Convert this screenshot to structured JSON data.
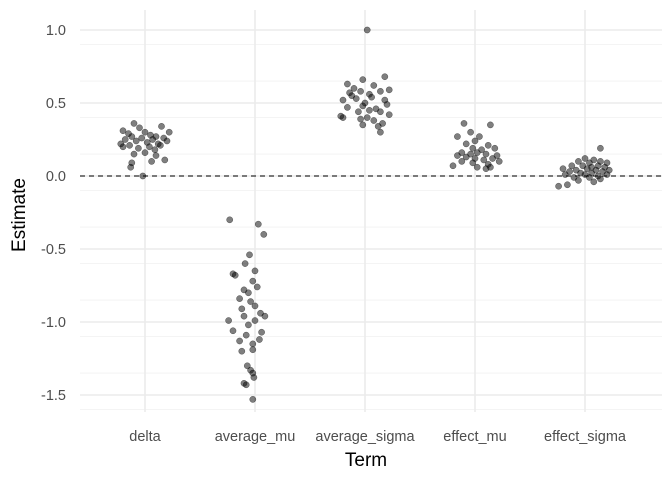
{
  "chart_data": {
    "type": "scatter",
    "title": "",
    "xlabel": "Term",
    "ylabel": "Estimate",
    "categories": [
      "delta",
      "average_mu",
      "average_sigma",
      "effect_mu",
      "effect_sigma"
    ],
    "ylim": [
      -1.6,
      1.06
    ],
    "y_ticks": [
      1.0,
      0.5,
      0.0,
      -0.5,
      -1.0,
      -1.5
    ],
    "y_tick_labels": [
      "1.0",
      "0.5",
      "0.0",
      "-0.5",
      "-1.0",
      "-1.5"
    ],
    "reference_line": {
      "y": 0,
      "style": "dashed"
    },
    "grid": true,
    "point_color": "#000000",
    "point_alpha": 0.5,
    "series": [
      {
        "category": "delta",
        "points": [
          {
            "x": -0.2,
            "y": 0.31
          },
          {
            "x": -0.15,
            "y": 0.29
          },
          {
            "x": -0.1,
            "y": 0.36
          },
          {
            "x": -0.05,
            "y": 0.33
          },
          {
            "x": 0.0,
            "y": 0.3
          },
          {
            "x": 0.05,
            "y": 0.28
          },
          {
            "x": 0.1,
            "y": 0.27
          },
          {
            "x": 0.15,
            "y": 0.34
          },
          {
            "x": 0.22,
            "y": 0.3
          },
          {
            "x": -0.22,
            "y": 0.22
          },
          {
            "x": -0.18,
            "y": 0.25
          },
          {
            "x": -0.12,
            "y": 0.27
          },
          {
            "x": -0.08,
            "y": 0.24
          },
          {
            "x": -0.03,
            "y": 0.26
          },
          {
            "x": 0.02,
            "y": 0.23
          },
          {
            "x": 0.07,
            "y": 0.25
          },
          {
            "x": 0.12,
            "y": 0.22
          },
          {
            "x": 0.17,
            "y": 0.26
          },
          {
            "x": 0.2,
            "y": 0.24
          },
          {
            "x": -0.2,
            "y": 0.2
          },
          {
            "x": -0.14,
            "y": 0.21
          },
          {
            "x": -0.06,
            "y": 0.19
          },
          {
            "x": 0.04,
            "y": 0.2
          },
          {
            "x": 0.09,
            "y": 0.18
          },
          {
            "x": 0.14,
            "y": 0.21
          },
          {
            "x": -0.1,
            "y": 0.15
          },
          {
            "x": 0.0,
            "y": 0.16
          },
          {
            "x": 0.1,
            "y": 0.14
          },
          {
            "x": 0.18,
            "y": 0.11
          },
          {
            "x": -0.12,
            "y": 0.09
          },
          {
            "x": -0.13,
            "y": 0.06
          },
          {
            "x": 0.06,
            "y": 0.1
          },
          {
            "x": -0.02,
            "y": 0.0
          }
        ]
      },
      {
        "category": "average_mu",
        "points": [
          {
            "x": -0.23,
            "y": -0.3
          },
          {
            "x": 0.03,
            "y": -0.33
          },
          {
            "x": 0.08,
            "y": -0.4
          },
          {
            "x": -0.05,
            "y": -0.54
          },
          {
            "x": -0.09,
            "y": -0.6
          },
          {
            "x": 0.0,
            "y": -0.65
          },
          {
            "x": -0.2,
            "y": -0.67
          },
          {
            "x": -0.18,
            "y": -0.68
          },
          {
            "x": -0.02,
            "y": -0.72
          },
          {
            "x": -0.1,
            "y": -0.78
          },
          {
            "x": -0.06,
            "y": -0.8
          },
          {
            "x": 0.02,
            "y": -0.76
          },
          {
            "x": -0.14,
            "y": -0.84
          },
          {
            "x": -0.04,
            "y": -0.86
          },
          {
            "x": 0.0,
            "y": -0.89
          },
          {
            "x": -0.12,
            "y": -0.91
          },
          {
            "x": -0.1,
            "y": -0.96
          },
          {
            "x": 0.05,
            "y": -0.94
          },
          {
            "x": 0.09,
            "y": -0.96
          },
          {
            "x": -0.24,
            "y": -0.99
          },
          {
            "x": -0.06,
            "y": -1.02
          },
          {
            "x": 0.0,
            "y": -0.99
          },
          {
            "x": -0.2,
            "y": -1.06
          },
          {
            "x": -0.08,
            "y": -1.09
          },
          {
            "x": 0.06,
            "y": -1.07
          },
          {
            "x": -0.14,
            "y": -1.13
          },
          {
            "x": -0.02,
            "y": -1.15
          },
          {
            "x": 0.04,
            "y": -1.12
          },
          {
            "x": -0.12,
            "y": -1.2
          },
          {
            "x": -0.02,
            "y": -1.19
          },
          {
            "x": -0.07,
            "y": -1.3
          },
          {
            "x": -0.04,
            "y": -1.33
          },
          {
            "x": -0.02,
            "y": -1.35
          },
          {
            "x": -0.01,
            "y": -1.38
          },
          {
            "x": -0.1,
            "y": -1.42
          },
          {
            "x": -0.08,
            "y": -1.43
          },
          {
            "x": -0.02,
            "y": -1.53
          }
        ]
      },
      {
        "category": "average_sigma",
        "points": [
          {
            "x": 0.02,
            "y": 1.0
          },
          {
            "x": -0.16,
            "y": 0.63
          },
          {
            "x": -0.02,
            "y": 0.66
          },
          {
            "x": 0.18,
            "y": 0.68
          },
          {
            "x": -0.1,
            "y": 0.6
          },
          {
            "x": 0.08,
            "y": 0.62
          },
          {
            "x": 0.22,
            "y": 0.59
          },
          {
            "x": -0.14,
            "y": 0.57
          },
          {
            "x": -0.12,
            "y": 0.55
          },
          {
            "x": -0.04,
            "y": 0.58
          },
          {
            "x": 0.04,
            "y": 0.56
          },
          {
            "x": 0.14,
            "y": 0.58
          },
          {
            "x": -0.2,
            "y": 0.52
          },
          {
            "x": -0.08,
            "y": 0.53
          },
          {
            "x": 0.0,
            "y": 0.5
          },
          {
            "x": 0.06,
            "y": 0.54
          },
          {
            "x": 0.18,
            "y": 0.52
          },
          {
            "x": -0.16,
            "y": 0.47
          },
          {
            "x": -0.02,
            "y": 0.48
          },
          {
            "x": 0.1,
            "y": 0.46
          },
          {
            "x": 0.2,
            "y": 0.49
          },
          {
            "x": -0.06,
            "y": 0.44
          },
          {
            "x": 0.04,
            "y": 0.45
          },
          {
            "x": 0.14,
            "y": 0.44
          },
          {
            "x": 0.22,
            "y": 0.42
          },
          {
            "x": -0.22,
            "y": 0.41
          },
          {
            "x": -0.2,
            "y": 0.4
          },
          {
            "x": -0.04,
            "y": 0.39
          },
          {
            "x": 0.08,
            "y": 0.38
          },
          {
            "x": 0.16,
            "y": 0.36
          },
          {
            "x": -0.02,
            "y": 0.35
          },
          {
            "x": 0.12,
            "y": 0.34
          },
          {
            "x": 0.14,
            "y": 0.3
          },
          {
            "x": 0.02,
            "y": 0.4
          }
        ]
      },
      {
        "category": "effect_mu",
        "points": [
          {
            "x": -0.1,
            "y": 0.36
          },
          {
            "x": 0.14,
            "y": 0.35
          },
          {
            "x": -0.04,
            "y": 0.3
          },
          {
            "x": 0.04,
            "y": 0.27
          },
          {
            "x": -0.16,
            "y": 0.27
          },
          {
            "x": 0.0,
            "y": 0.24
          },
          {
            "x": -0.08,
            "y": 0.22
          },
          {
            "x": 0.12,
            "y": 0.21
          },
          {
            "x": 0.18,
            "y": 0.19
          },
          {
            "x": -0.02,
            "y": 0.19
          },
          {
            "x": 0.06,
            "y": 0.18
          },
          {
            "x": -0.12,
            "y": 0.16
          },
          {
            "x": -0.04,
            "y": 0.15
          },
          {
            "x": 0.02,
            "y": 0.16
          },
          {
            "x": 0.1,
            "y": 0.15
          },
          {
            "x": 0.2,
            "y": 0.14
          },
          {
            "x": -0.16,
            "y": 0.14
          },
          {
            "x": -0.08,
            "y": 0.13
          },
          {
            "x": 0.0,
            "y": 0.12
          },
          {
            "x": 0.08,
            "y": 0.11
          },
          {
            "x": 0.16,
            "y": 0.12
          },
          {
            "x": 0.22,
            "y": 0.1
          },
          {
            "x": -0.12,
            "y": 0.1
          },
          {
            "x": -0.02,
            "y": 0.09
          },
          {
            "x": 0.12,
            "y": 0.08
          },
          {
            "x": -0.2,
            "y": 0.07
          },
          {
            "x": 0.02,
            "y": 0.06
          },
          {
            "x": 0.1,
            "y": 0.05
          },
          {
            "x": 0.14,
            "y": 0.06
          }
        ]
      },
      {
        "category": "effect_sigma",
        "points": [
          {
            "x": 0.14,
            "y": 0.19
          },
          {
            "x": 0.0,
            "y": 0.12
          },
          {
            "x": 0.08,
            "y": 0.11
          },
          {
            "x": -0.06,
            "y": 0.1
          },
          {
            "x": 0.04,
            "y": 0.09
          },
          {
            "x": 0.14,
            "y": 0.1
          },
          {
            "x": 0.2,
            "y": 0.09
          },
          {
            "x": -0.12,
            "y": 0.07
          },
          {
            "x": -0.02,
            "y": 0.07
          },
          {
            "x": 0.06,
            "y": 0.06
          },
          {
            "x": 0.12,
            "y": 0.07
          },
          {
            "x": 0.18,
            "y": 0.06
          },
          {
            "x": -0.2,
            "y": 0.05
          },
          {
            "x": -0.08,
            "y": 0.04
          },
          {
            "x": 0.02,
            "y": 0.05
          },
          {
            "x": 0.1,
            "y": 0.04
          },
          {
            "x": 0.22,
            "y": 0.04
          },
          {
            "x": -0.14,
            "y": 0.03
          },
          {
            "x": -0.04,
            "y": 0.02
          },
          {
            "x": 0.06,
            "y": 0.02
          },
          {
            "x": 0.16,
            "y": 0.03
          },
          {
            "x": -0.18,
            "y": 0.01
          },
          {
            "x": 0.0,
            "y": 0.01
          },
          {
            "x": 0.12,
            "y": 0.0
          },
          {
            "x": 0.2,
            "y": 0.01
          },
          {
            "x": -0.1,
            "y": -0.01
          },
          {
            "x": 0.04,
            "y": -0.01
          },
          {
            "x": 0.14,
            "y": -0.02
          },
          {
            "x": -0.06,
            "y": -0.03
          },
          {
            "x": 0.08,
            "y": -0.04
          },
          {
            "x": -0.16,
            "y": -0.06
          },
          {
            "x": -0.24,
            "y": -0.07
          }
        ]
      }
    ]
  }
}
